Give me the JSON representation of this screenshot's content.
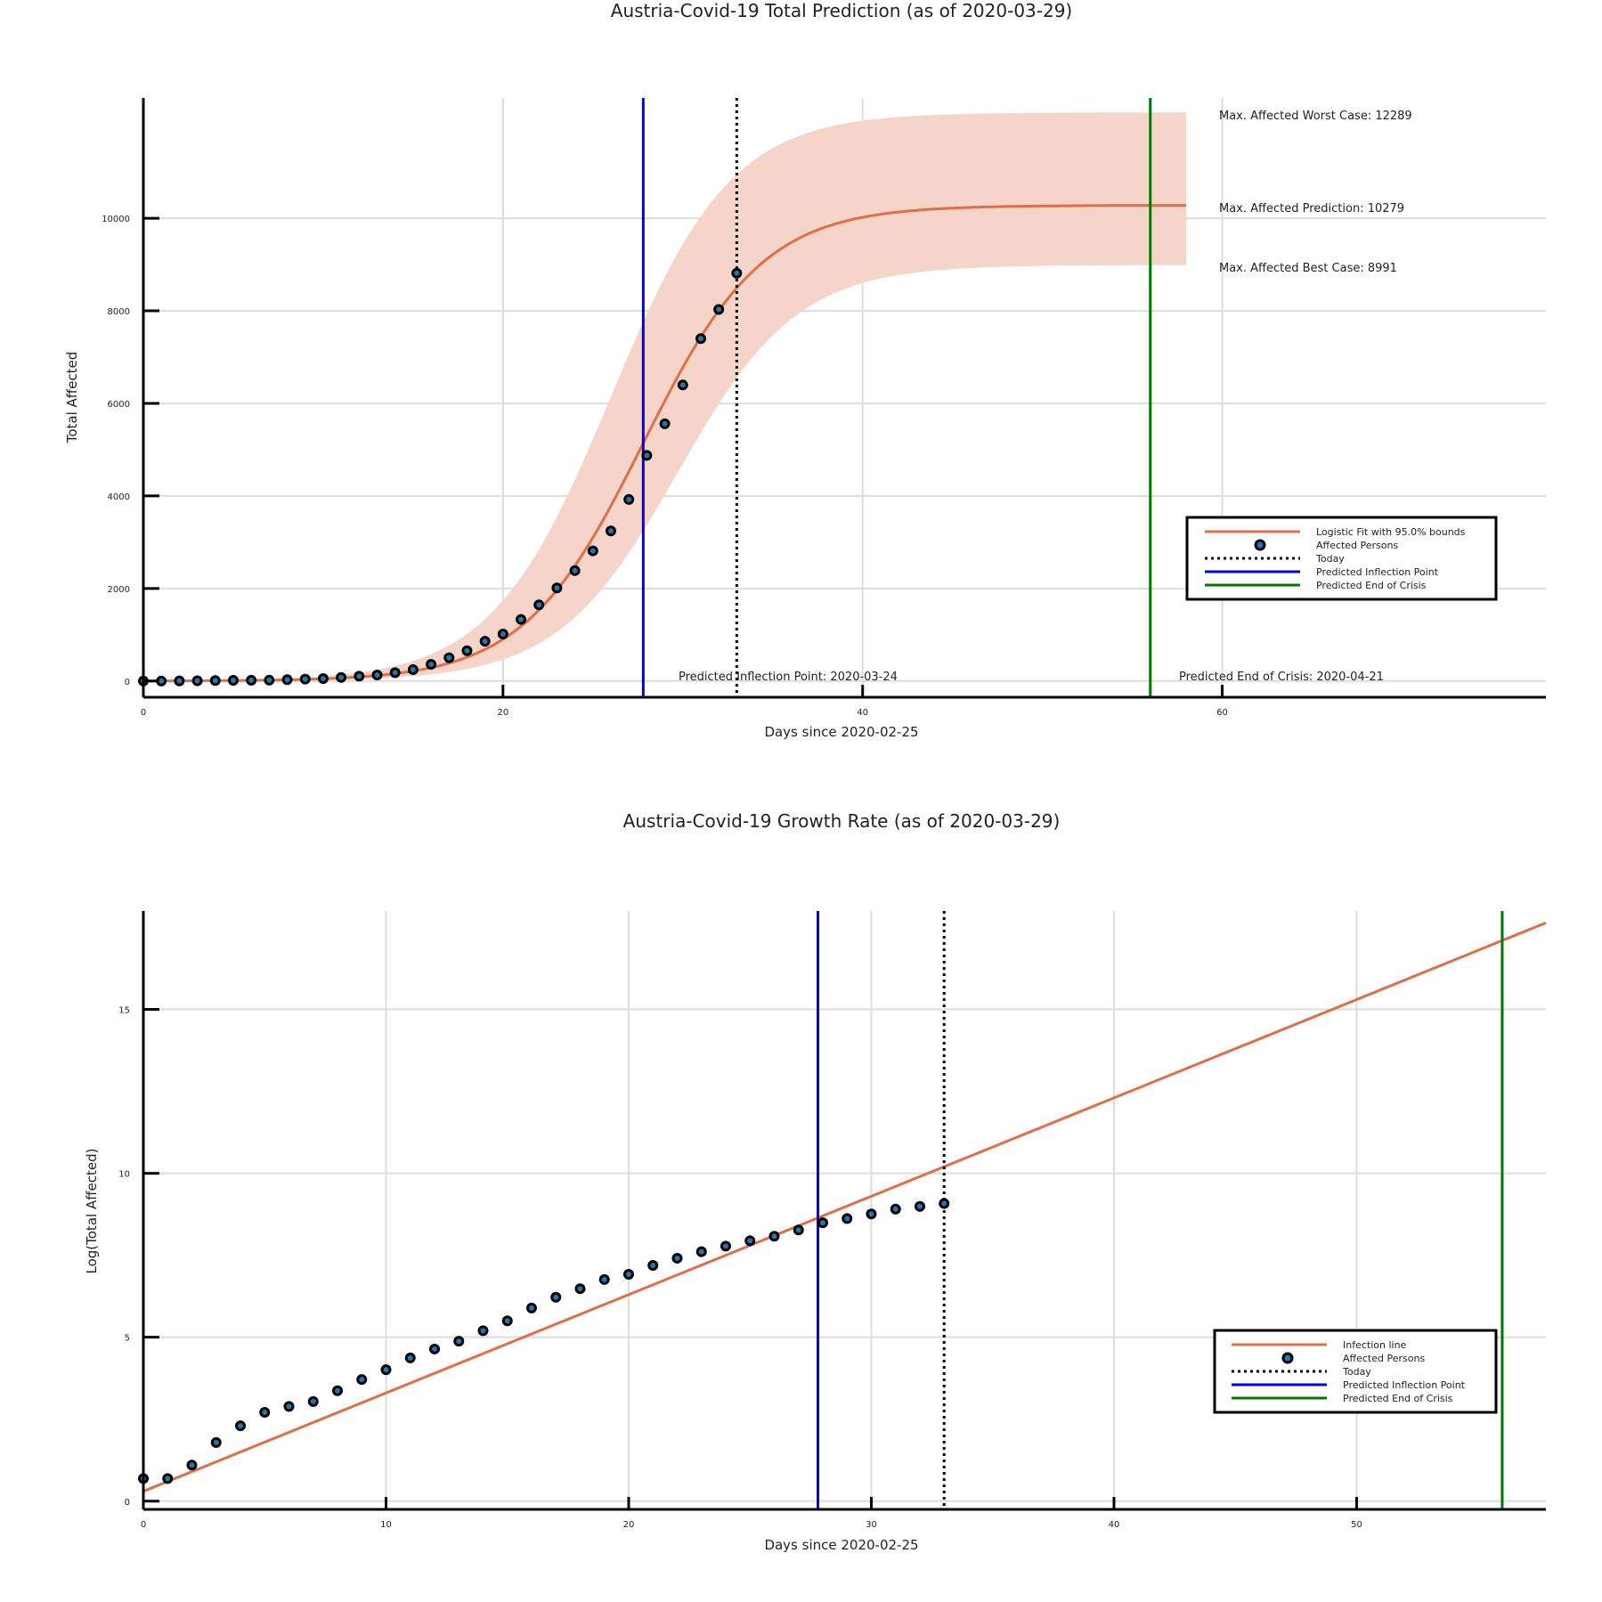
{
  "colors": {
    "fit": "#E26D46",
    "band": "#F5D5C9",
    "points": "#000000",
    "point_fill": "#1f77b4",
    "inflection": "#0000EE",
    "end": "#007700",
    "today": "#000000",
    "grid": "#dddddd"
  },
  "chart_data": [
    {
      "type": "line",
      "title": "Austria-Covid-19 Total Prediction (as of 2020-03-29)",
      "xlabel": "Days since 2020-02-25",
      "ylabel": "Total Affected",
      "xlim": [
        0,
        78
      ],
      "ylim": [
        -350,
        12600
      ],
      "xticks": [
        0,
        20,
        40,
        60
      ],
      "yticks": [
        0,
        2000,
        4000,
        6000,
        8000,
        10000
      ],
      "grid": true,
      "fit": {
        "name": "Logistic Fit with 95.0% bounds",
        "L": 10279,
        "k": 0.3,
        "x0": 27.8,
        "x_end": 58
      },
      "band": {
        "worst_L": 12289,
        "best_L": 8991,
        "worst_x0": 26,
        "best_x0": 29.7
      },
      "points": {
        "name": "Affected Persons",
        "x": [
          0,
          1,
          2,
          3,
          4,
          5,
          6,
          7,
          8,
          9,
          10,
          11,
          12,
          13,
          14,
          15,
          16,
          17,
          18,
          19,
          20,
          21,
          22,
          23,
          24,
          25,
          26,
          27,
          28,
          29,
          30,
          31,
          32,
          33
        ],
        "y": [
          2,
          2,
          3,
          6,
          10,
          15,
          18,
          21,
          29,
          41,
          55,
          79,
          104,
          131,
          182,
          246,
          361,
          504,
          655,
          860,
          1016,
          1332,
          1646,
          2013,
          2388,
          2814,
          3244,
          3924,
          4876,
          5560,
          6398,
          7399,
          8030,
          8813
        ]
      },
      "today_x": 33,
      "today_name": "Today",
      "inflection_x": 27.8,
      "inflection_name": "Predicted Inflection Point",
      "end_x": 56,
      "end_name": "Predicted End of Crisis",
      "annotations": {
        "worst": "Max. Affected Worst Case: 12289",
        "pred": "Max. Affected Prediction: 10279",
        "best": "Max. Affected Best Case: 8991",
        "inflection": "Predicted Inflection Point: 2020-03-24",
        "end": "Predicted End of Crisis: 2020-04-21"
      },
      "legend_position": "bottom-right"
    },
    {
      "type": "line",
      "title": "Austria-Covid-19 Growth Rate (as of 2020-03-29)",
      "xlabel": "Days since 2020-02-25",
      "ylabel": "Log(Total Affected)",
      "xlim": [
        0,
        57.8
      ],
      "ylim": [
        -0.25,
        18
      ],
      "xticks": [
        0,
        10,
        20,
        30,
        40,
        50
      ],
      "yticks": [
        0,
        5,
        10,
        15
      ],
      "grid": true,
      "line": {
        "name": "Infection line",
        "intercept": 0.3,
        "slope": 0.3,
        "x_end": 57.8
      },
      "points": {
        "name": "Affected Persons",
        "x": [
          0,
          1,
          2,
          3,
          4,
          5,
          6,
          7,
          8,
          9,
          10,
          11,
          12,
          13,
          14,
          15,
          16,
          17,
          18,
          19,
          20,
          21,
          22,
          23,
          24,
          25,
          26,
          27,
          28,
          29,
          30,
          31,
          32,
          33
        ],
        "y": [
          0.69,
          0.69,
          1.1,
          1.79,
          2.3,
          2.71,
          2.89,
          3.04,
          3.37,
          3.71,
          4.01,
          4.37,
          4.64,
          4.88,
          5.2,
          5.5,
          5.89,
          6.22,
          6.48,
          6.76,
          6.92,
          7.19,
          7.41,
          7.61,
          7.78,
          7.94,
          8.08,
          8.27,
          8.49,
          8.62,
          8.76,
          8.91,
          8.99,
          9.08
        ]
      },
      "today_x": 33,
      "today_name": "Today",
      "inflection_x": 27.8,
      "inflection_name": "Predicted Inflection Point",
      "end_x": 56,
      "end_name": "Predicted End of Crisis",
      "legend_position": "bottom-right"
    }
  ]
}
